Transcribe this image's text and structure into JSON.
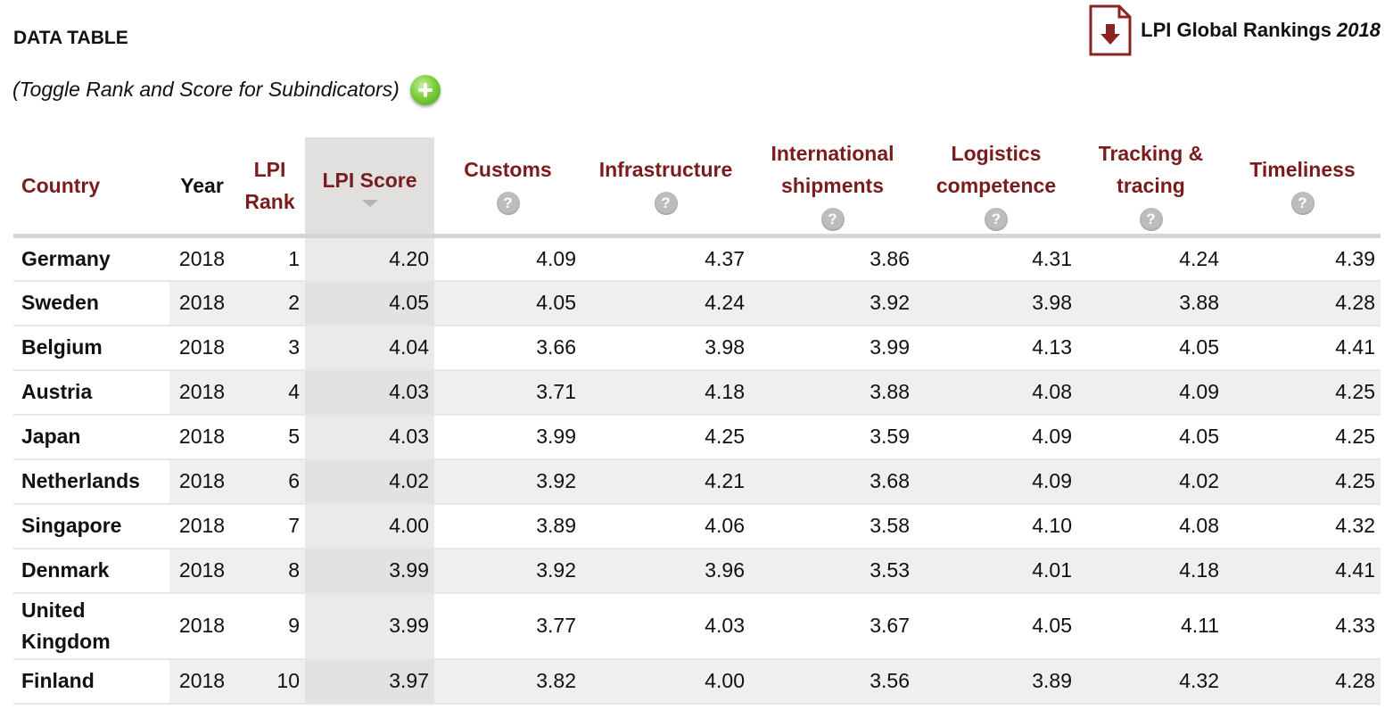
{
  "header": {
    "title": "DATA TABLE",
    "toggle_text": "(Toggle Rank and Score for Subindicators)",
    "download_label": "LPI Global Rankings",
    "download_year": "2018",
    "plus_icon": "plus-circle-icon",
    "pdf_icon": "pdf-download-icon"
  },
  "colors": {
    "header_text": "#7a1c1c",
    "pdf_icon": "#8b2323",
    "plus_icon": "#6cc22e",
    "sorted_column": "#e2dfdf"
  },
  "table": {
    "columns": [
      {
        "key": "country",
        "label": "Country",
        "help": false
      },
      {
        "key": "year",
        "label": "Year",
        "help": false
      },
      {
        "key": "rank",
        "label": "LPI Rank",
        "help": false
      },
      {
        "key": "score",
        "label": "LPI Score",
        "help": false,
        "sorted": "descending"
      },
      {
        "key": "customs",
        "label": "Customs",
        "help": "?"
      },
      {
        "key": "infrastructure",
        "label": "Infrastructure",
        "help": "?"
      },
      {
        "key": "international",
        "label": "International shipments",
        "help": "?"
      },
      {
        "key": "logistics",
        "label": "Logistics competence",
        "help": "?"
      },
      {
        "key": "tracking",
        "label": "Tracking & tracing",
        "help": "?"
      },
      {
        "key": "timeliness",
        "label": "Timeliness",
        "help": "?"
      }
    ],
    "rows": [
      {
        "country": "Germany",
        "year": "2018",
        "rank": "1",
        "score": "4.20",
        "customs": "4.09",
        "infrastructure": "4.37",
        "international": "3.86",
        "logistics": "4.31",
        "tracking": "4.24",
        "timeliness": "4.39"
      },
      {
        "country": "Sweden",
        "year": "2018",
        "rank": "2",
        "score": "4.05",
        "customs": "4.05",
        "infrastructure": "4.24",
        "international": "3.92",
        "logistics": "3.98",
        "tracking": "3.88",
        "timeliness": "4.28"
      },
      {
        "country": "Belgium",
        "year": "2018",
        "rank": "3",
        "score": "4.04",
        "customs": "3.66",
        "infrastructure": "3.98",
        "international": "3.99",
        "logistics": "4.13",
        "tracking": "4.05",
        "timeliness": "4.41"
      },
      {
        "country": "Austria",
        "year": "2018",
        "rank": "4",
        "score": "4.03",
        "customs": "3.71",
        "infrastructure": "4.18",
        "international": "3.88",
        "logistics": "4.08",
        "tracking": "4.09",
        "timeliness": "4.25"
      },
      {
        "country": "Japan",
        "year": "2018",
        "rank": "5",
        "score": "4.03",
        "customs": "3.99",
        "infrastructure": "4.25",
        "international": "3.59",
        "logistics": "4.09",
        "tracking": "4.05",
        "timeliness": "4.25"
      },
      {
        "country": "Netherlands",
        "year": "2018",
        "rank": "6",
        "score": "4.02",
        "customs": "3.92",
        "infrastructure": "4.21",
        "international": "3.68",
        "logistics": "4.09",
        "tracking": "4.02",
        "timeliness": "4.25"
      },
      {
        "country": "Singapore",
        "year": "2018",
        "rank": "7",
        "score": "4.00",
        "customs": "3.89",
        "infrastructure": "4.06",
        "international": "3.58",
        "logistics": "4.10",
        "tracking": "4.08",
        "timeliness": "4.32"
      },
      {
        "country": "Denmark",
        "year": "2018",
        "rank": "8",
        "score": "3.99",
        "customs": "3.92",
        "infrastructure": "3.96",
        "international": "3.53",
        "logistics": "4.01",
        "tracking": "4.18",
        "timeliness": "4.41"
      },
      {
        "country": "United Kingdom",
        "year": "2018",
        "rank": "9",
        "score": "3.99",
        "customs": "3.77",
        "infrastructure": "4.03",
        "international": "3.67",
        "logistics": "4.05",
        "tracking": "4.11",
        "timeliness": "4.33"
      },
      {
        "country": "Finland",
        "year": "2018",
        "rank": "10",
        "score": "3.97",
        "customs": "3.82",
        "infrastructure": "4.00",
        "international": "3.56",
        "logistics": "3.89",
        "tracking": "4.32",
        "timeliness": "4.28"
      }
    ]
  }
}
